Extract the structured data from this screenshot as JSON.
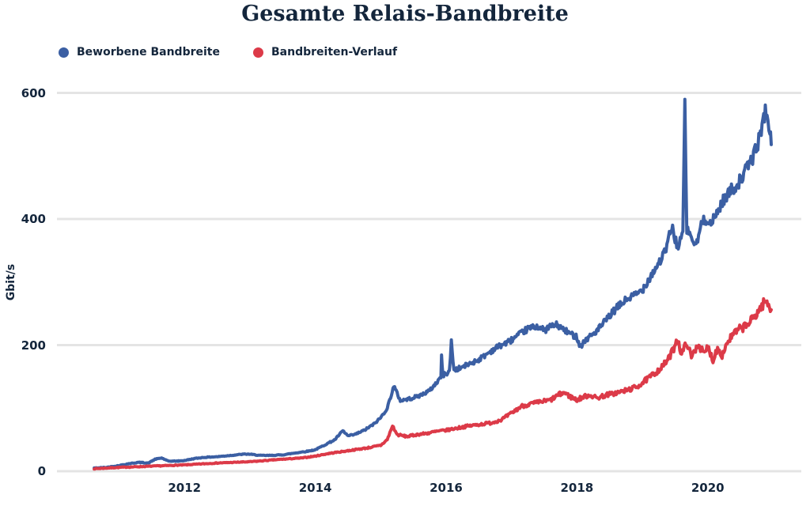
{
  "chart_data": {
    "type": "line",
    "title": "Gesamte Relais-Bandbreite",
    "ylabel": "Gbit/s",
    "xlabel": "",
    "grid_color": "#e4e4e4",
    "text_color": "#14263c",
    "legend_position": "top-left",
    "x_ticks": [
      "2012",
      "2014",
      "2016",
      "2018",
      "2020"
    ],
    "x_tick_years": [
      2012,
      2014,
      2016,
      2018,
      2020
    ],
    "y_ticks": [
      "0",
      "200",
      "400",
      "600"
    ],
    "y_tick_values": [
      0,
      200,
      400,
      600
    ],
    "x_range": [
      2010.05,
      2021.43
    ],
    "y_range": [
      0,
      600
    ],
    "noise_note": "lines show small random fluctuations of roughly ±2-3% around the trend",
    "series": [
      {
        "name": "Beworbene Bandbreite",
        "color": "#3b5fa3",
        "noise_pct": 0.022,
        "points": [
          [
            2010.62,
            5
          ],
          [
            2010.8,
            6
          ],
          [
            2011.0,
            9
          ],
          [
            2011.15,
            12
          ],
          [
            2011.3,
            14
          ],
          [
            2011.45,
            13
          ],
          [
            2011.55,
            19
          ],
          [
            2011.65,
            21
          ],
          [
            2011.75,
            16
          ],
          [
            2011.9,
            16
          ],
          [
            2012.0,
            17
          ],
          [
            2012.15,
            20
          ],
          [
            2012.3,
            22
          ],
          [
            2012.5,
            23
          ],
          [
            2012.7,
            25
          ],
          [
            2012.9,
            27
          ],
          [
            2013.0,
            27
          ],
          [
            2013.15,
            25
          ],
          [
            2013.3,
            25
          ],
          [
            2013.5,
            26
          ],
          [
            2013.7,
            29
          ],
          [
            2013.9,
            32
          ],
          [
            2014.0,
            34
          ],
          [
            2014.15,
            42
          ],
          [
            2014.3,
            50
          ],
          [
            2014.42,
            64
          ],
          [
            2014.5,
            56
          ],
          [
            2014.6,
            58
          ],
          [
            2014.75,
            65
          ],
          [
            2014.9,
            75
          ],
          [
            2015.0,
            85
          ],
          [
            2015.1,
            100
          ],
          [
            2015.2,
            135
          ],
          [
            2015.3,
            112
          ],
          [
            2015.45,
            115
          ],
          [
            2015.6,
            120
          ],
          [
            2015.75,
            128
          ],
          [
            2015.85,
            140
          ],
          [
            2015.92,
            150
          ],
          [
            2015.93,
            181
          ],
          [
            2015.95,
            152
          ],
          [
            2016.05,
            158
          ],
          [
            2016.08,
            205
          ],
          [
            2016.12,
            160
          ],
          [
            2016.2,
            163
          ],
          [
            2016.35,
            170
          ],
          [
            2016.5,
            177
          ],
          [
            2016.65,
            188
          ],
          [
            2016.8,
            198
          ],
          [
            2016.95,
            205
          ],
          [
            2017.1,
            215
          ],
          [
            2017.25,
            226
          ],
          [
            2017.4,
            230
          ],
          [
            2017.5,
            223
          ],
          [
            2017.6,
            230
          ],
          [
            2017.7,
            232
          ],
          [
            2017.8,
            224
          ],
          [
            2017.9,
            218
          ],
          [
            2018.0,
            213
          ],
          [
            2018.05,
            198
          ],
          [
            2018.15,
            210
          ],
          [
            2018.3,
            222
          ],
          [
            2018.45,
            240
          ],
          [
            2018.6,
            258
          ],
          [
            2018.75,
            272
          ],
          [
            2018.9,
            280
          ],
          [
            2019.0,
            288
          ],
          [
            2019.1,
            305
          ],
          [
            2019.25,
            330
          ],
          [
            2019.35,
            348
          ],
          [
            2019.45,
            388
          ],
          [
            2019.5,
            370
          ],
          [
            2019.55,
            352
          ],
          [
            2019.62,
            380
          ],
          [
            2019.65,
            580
          ],
          [
            2019.68,
            382
          ],
          [
            2019.75,
            372
          ],
          [
            2019.82,
            355
          ],
          [
            2019.9,
            392
          ],
          [
            2020.0,
            402
          ],
          [
            2020.05,
            390
          ],
          [
            2020.15,
            412
          ],
          [
            2020.25,
            432
          ],
          [
            2020.35,
            445
          ],
          [
            2020.45,
            455
          ],
          [
            2020.55,
            470
          ],
          [
            2020.62,
            485
          ],
          [
            2020.7,
            500
          ],
          [
            2020.78,
            525
          ],
          [
            2020.83,
            548
          ],
          [
            2020.88,
            572
          ],
          [
            2020.92,
            560
          ],
          [
            2020.95,
            540
          ],
          [
            2020.97,
            518
          ]
        ]
      },
      {
        "name": "Bandbreiten-Verlauf",
        "color": "#dc3a48",
        "noise_pct": 0.03,
        "points": [
          [
            2010.62,
            4
          ],
          [
            2011.0,
            6
          ],
          [
            2011.5,
            8
          ],
          [
            2012.0,
            10
          ],
          [
            2012.5,
            13
          ],
          [
            2013.0,
            15
          ],
          [
            2013.5,
            19
          ],
          [
            2013.8,
            21
          ],
          [
            2014.0,
            24
          ],
          [
            2014.2,
            28
          ],
          [
            2014.4,
            31
          ],
          [
            2014.6,
            34
          ],
          [
            2014.8,
            37
          ],
          [
            2015.0,
            41
          ],
          [
            2015.1,
            50
          ],
          [
            2015.18,
            72
          ],
          [
            2015.25,
            58
          ],
          [
            2015.4,
            55
          ],
          [
            2015.55,
            58
          ],
          [
            2015.7,
            60
          ],
          [
            2015.85,
            63
          ],
          [
            2016.0,
            65
          ],
          [
            2016.15,
            68
          ],
          [
            2016.3,
            71
          ],
          [
            2016.5,
            74
          ],
          [
            2016.7,
            77
          ],
          [
            2016.85,
            82
          ],
          [
            2017.0,
            92
          ],
          [
            2017.15,
            103
          ],
          [
            2017.3,
            107
          ],
          [
            2017.45,
            110
          ],
          [
            2017.6,
            113
          ],
          [
            2017.7,
            120
          ],
          [
            2017.8,
            125
          ],
          [
            2017.9,
            118
          ],
          [
            2018.0,
            113
          ],
          [
            2018.1,
            118
          ],
          [
            2018.2,
            121
          ],
          [
            2018.3,
            116
          ],
          [
            2018.45,
            121
          ],
          [
            2018.6,
            124
          ],
          [
            2018.75,
            128
          ],
          [
            2018.9,
            133
          ],
          [
            2019.0,
            140
          ],
          [
            2019.15,
            152
          ],
          [
            2019.3,
            165
          ],
          [
            2019.4,
            178
          ],
          [
            2019.48,
            195
          ],
          [
            2019.53,
            212
          ],
          [
            2019.6,
            185
          ],
          [
            2019.68,
            205
          ],
          [
            2019.75,
            180
          ],
          [
            2019.85,
            202
          ],
          [
            2019.95,
            185
          ],
          [
            2020.0,
            198
          ],
          [
            2020.08,
            176
          ],
          [
            2020.15,
            196
          ],
          [
            2020.22,
            184
          ],
          [
            2020.3,
            205
          ],
          [
            2020.4,
            218
          ],
          [
            2020.5,
            226
          ],
          [
            2020.6,
            232
          ],
          [
            2020.7,
            243
          ],
          [
            2020.8,
            258
          ],
          [
            2020.88,
            270
          ],
          [
            2020.93,
            262
          ],
          [
            2020.97,
            256
          ]
        ]
      }
    ]
  }
}
